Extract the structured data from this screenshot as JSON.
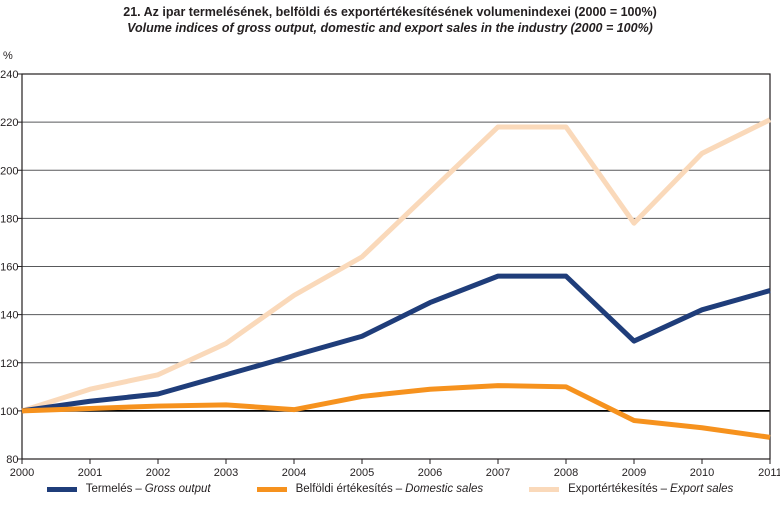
{
  "figure": {
    "title_hu": "21. Az ipar termelésének, belföldi és exportértékesítésének volumenindexei (2000 = 100%)",
    "title_en": "Volume indices of gross output, domestic and export sales in the industry (2000 = 100%)",
    "y_unit": "%"
  },
  "chart_data": {
    "type": "line",
    "title": "21. Az ipar termelésének, belföldi és exportértékesítésének volumenindexei (2000 = 100%)",
    "subtitle": "Volume indices of gross output, domestic and export sales in the industry (2000 = 100%)",
    "ylabel": "%",
    "xlabel": "",
    "categories": [
      "2000",
      "2001",
      "2002",
      "2003",
      "2004",
      "2005",
      "2006",
      "2007",
      "2008",
      "2009",
      "2010",
      "2011"
    ],
    "series": [
      {
        "name_hu": "Termelés",
        "name_en": "Gross output",
        "color": "#1f3d7a",
        "values": [
          100,
          104,
          107,
          115,
          123,
          131,
          145,
          156,
          156,
          129,
          142,
          150
        ]
      },
      {
        "name_hu": "Belföldi értékesítés",
        "name_en": "Domestic sales",
        "color": "#f6921e",
        "values": [
          100,
          101,
          102,
          102.5,
          100.5,
          106,
          109,
          110.5,
          110,
          96,
          93,
          89
        ]
      },
      {
        "name_hu": "Exportértékesítés",
        "name_en": "Export sales",
        "color": "#fad9ba",
        "values": [
          100,
          109,
          115,
          128,
          148,
          164,
          191,
          218,
          218,
          178,
          207,
          221
        ]
      }
    ],
    "draw_order": [
      2,
      0,
      1
    ],
    "ylim": [
      80,
      240
    ],
    "y_ticks": [
      80,
      100,
      120,
      140,
      160,
      180,
      200,
      220,
      240
    ],
    "baseline": 100,
    "grid": "horizontal",
    "grid_color": "#58595b",
    "axis_color": "#231f20",
    "baseline_color": "#000000",
    "legend_position": "bottom",
    "legend_separator": "–"
  }
}
